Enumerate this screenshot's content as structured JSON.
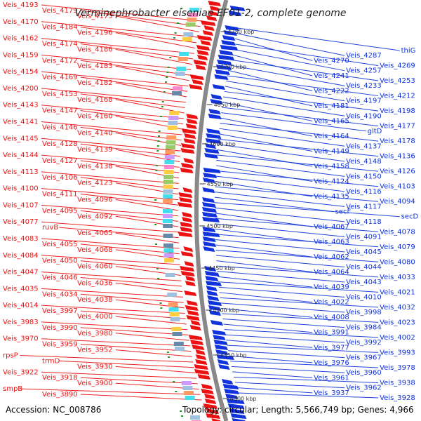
{
  "title": "Verminephrobacter eiseniae EF01-2, complete genome",
  "accession": "Accession: NC_008786",
  "topology": "Topology: circular; Length: 5,566,749 bp; Genes: 4,966",
  "colors": {
    "forward": "#ee1111",
    "reverse": "#1133dd",
    "backbone": "#888888",
    "leader_forward": "#ee2222",
    "leader_reverse": "#2244dd"
  },
  "ticks": [
    "4750 kbp",
    "4700 kbp",
    "4650 kbp",
    "4600 kbp",
    "4550 kbp",
    "4500 kbp",
    "4450 kbp",
    "4400 kbp",
    "4350 kbp",
    "4300 kbp"
  ],
  "left_labels": [
    "Veis_4193",
    "Veis_4179",
    "Veis_4173",
    "Veis_4170",
    "Veis_4184",
    "Veis_4196",
    "Veis_4162",
    "Veis_4174",
    "Veis_4186",
    "Veis_4159",
    "Veis_4172",
    "Veis_4183",
    "Veis_4154",
    "Veis_4169",
    "Veis_4182",
    "Veis_4200",
    "Veis_4153",
    "Veis_4168",
    "Veis_4143",
    "Veis_4147",
    "Veis_4160",
    "Veis_4141",
    "Veis_4146",
    "Veis_4140",
    "Veis_4145",
    "Veis_4128",
    "Veis_4139",
    "Veis_4144",
    "Veis_4127",
    "Veis_4138",
    "Veis_4113",
    "Veis_4106",
    "Veis_4123",
    "Veis_4100",
    "Veis_4111",
    "Veis_4096",
    "Veis_4107",
    "Veis_4095",
    "Veis_4092",
    "Veis_4077",
    "ruvB",
    "Veis_4065",
    "Veis_4083",
    "Veis_4055",
    "Veis_4068",
    "Veis_4084",
    "Veis_4050",
    "Veis_4060",
    "Veis_4047",
    "Veis_4046",
    "Veis_4036",
    "Veis_4035",
    "Veis_4034",
    "Veis_4038",
    "Veis_4014",
    "Veis_3997",
    "Veis_4000",
    "Veis_3983",
    "Veis_3990",
    "Veis_3980",
    "Veis_3970",
    "Veis_3959",
    "Veis_3952",
    "rpsP",
    "trmD",
    "Veis_3930",
    "Veis_3922",
    "Veis_3918",
    "Veis_3900",
    "smpB",
    "Veis_3890"
  ],
  "right_labels": [
    "thiG",
    "Veis_4287",
    "Veis_4270",
    "Veis_4269",
    "Veis_4257",
    "Veis_4241",
    "Veis_4253",
    "Veis_4233",
    "Veis_4222",
    "Veis_4212",
    "Veis_4197",
    "Veis_4181",
    "Veis_4198",
    "Veis_4190",
    "Veis_4165",
    "Veis_4177",
    "gltD",
    "Veis_4164",
    "Veis_4178",
    "Veis_4137",
    "Veis_4149",
    "Veis_4136",
    "Veis_4148",
    "Veis_4158",
    "Veis_4126",
    "Veis_4150",
    "Veis_4124",
    "Veis_4103",
    "Veis_4116",
    "Veis_4135",
    "Veis_4094",
    "Veis_4117",
    "secF",
    "secD",
    "Veis_4118",
    "Veis_4067",
    "Veis_4078",
    "Veis_4091",
    "Veis_4063",
    "Veis_4079",
    "Veis_4045",
    "Veis_4062",
    "Veis_4080",
    "Veis_4044",
    "Veis_4064",
    "Veis_4033",
    "Veis_4043",
    "Veis_4039",
    "Veis_4021",
    "Veis_4010",
    "Veis_4022",
    "Veis_4032",
    "Veis_3998",
    "Veis_4008",
    "Veis_4023",
    "Veis_3984",
    "Veis_3991",
    "Veis_4002",
    "Veis_3992",
    "Veis_3977",
    "Veis_3993",
    "Veis_3967",
    "Veis_3976",
    "Veis_3978",
    "Veis_3960",
    "Veis_3961",
    "Veis_3938",
    "Veis_3962",
    "Veis_3937",
    "Veis_3928"
  ]
}
